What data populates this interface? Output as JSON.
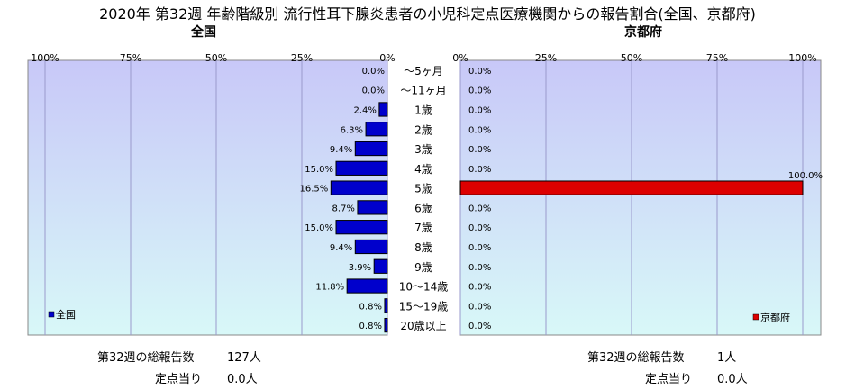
{
  "title": "2020年 第32週 年齢階級別 流行性耳下腺炎患者の小児科定点医療機関からの報告割合(全国、京都府)",
  "colors": {
    "national_bar": "#0000cc",
    "kyoto_bar": "#dd0000",
    "plot_bg_top": "#c8c8f8",
    "plot_bg_bottom": "#d8f8f8"
  },
  "chart_data": [
    {
      "type": "bar",
      "orientation": "horizontal",
      "direction": "right-to-left",
      "panel_title": "全国",
      "xlim": [
        0,
        100
      ],
      "x_ticks": [
        "100%",
        "75%",
        "50%",
        "25%",
        "0%"
      ],
      "categories": [
        "～5ヶ月",
        "～11ヶ月",
        "1歳",
        "2歳",
        "3歳",
        "4歳",
        "5歳",
        "6歳",
        "7歳",
        "8歳",
        "9歳",
        "10～14歳",
        "15～19歳",
        "20歳以上"
      ],
      "series": [
        {
          "name": "全国",
          "values": [
            0.0,
            0.0,
            2.4,
            6.3,
            9.4,
            15.0,
            16.5,
            8.7,
            15.0,
            9.4,
            3.9,
            11.8,
            0.8,
            0.8
          ],
          "labels": [
            "0.0%",
            "0.0%",
            "2.4%",
            "6.3%",
            "9.4%",
            "15.0%",
            "16.5%",
            "8.7%",
            "15.0%",
            "9.4%",
            "3.9%",
            "11.8%",
            "0.8%",
            "0.8%"
          ]
        }
      ],
      "legend": "bottom-left",
      "grid": true
    },
    {
      "type": "bar",
      "orientation": "horizontal",
      "direction": "left-to-right",
      "panel_title": "京都府",
      "xlim": [
        0,
        100
      ],
      "x_ticks": [
        "0%",
        "25%",
        "50%",
        "75%",
        "100%"
      ],
      "categories": [
        "～5ヶ月",
        "～11ヶ月",
        "1歳",
        "2歳",
        "3歳",
        "4歳",
        "5歳",
        "6歳",
        "7歳",
        "8歳",
        "9歳",
        "10～14歳",
        "15～19歳",
        "20歳以上"
      ],
      "series": [
        {
          "name": "京都府",
          "values": [
            0.0,
            0.0,
            0.0,
            0.0,
            0.0,
            0.0,
            100.0,
            0.0,
            0.0,
            0.0,
            0.0,
            0.0,
            0.0,
            0.0
          ],
          "labels": [
            "0.0%",
            "0.0%",
            "0.0%",
            "0.0%",
            "0.0%",
            "0.0%",
            "100.0%",
            "0.0%",
            "0.0%",
            "0.0%",
            "0.0%",
            "0.0%",
            "0.0%",
            "0.0%"
          ]
        }
      ],
      "legend": "bottom-right",
      "grid": true
    }
  ],
  "footer": {
    "national": {
      "total_label": "第32週の総報告数",
      "total_value": "127人",
      "per_label": "定点当り",
      "per_value": "0.0人"
    },
    "kyoto": {
      "total_label": "第32週の総報告数",
      "total_value": "1人",
      "per_label": "定点当り",
      "per_value": "0.0人"
    }
  }
}
